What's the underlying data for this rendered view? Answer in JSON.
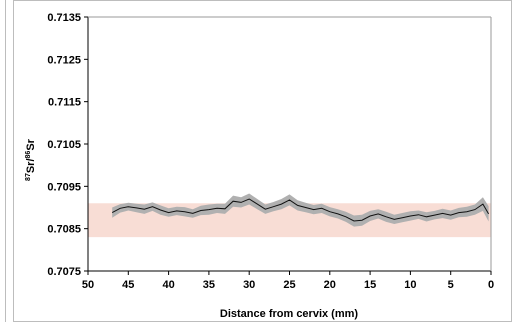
{
  "chart_data": {
    "type": "line",
    "title": "",
    "xlabel": "Distance from cervix (mm)",
    "ylabel_parts": {
      "sup1": "87",
      "mid": "Sr/",
      "sup2": "86",
      "tail": "Sr"
    },
    "xlim": [
      50,
      0
    ],
    "ylim": [
      0.7075,
      0.7135
    ],
    "x_ticks": [
      50,
      45,
      40,
      35,
      30,
      25,
      20,
      15,
      10,
      5,
      0
    ],
    "x_tick_labels": [
      "50",
      "45",
      "40",
      "35",
      "30",
      "25",
      "20",
      "15",
      "10",
      "5",
      "0"
    ],
    "y_ticks": [
      0.7075,
      0.7085,
      0.7095,
      0.7105,
      0.7115,
      0.7125,
      0.7135
    ],
    "y_tick_labels": [
      "0.7075",
      "0.7085",
      "0.7095",
      "0.7105",
      "0.7115",
      "0.7125",
      "0.7135"
    ],
    "grid": false,
    "band": {
      "y_min": 0.7083,
      "y_max": 0.7091,
      "color": "#f8ddd5"
    },
    "series": [
      {
        "color": "#111111",
        "error_color": "#b0b0b0",
        "x": [
          47,
          46,
          45,
          44,
          43,
          42,
          41,
          40,
          39,
          38,
          37,
          36,
          35,
          34,
          33,
          32,
          31,
          30,
          29,
          28,
          27,
          26,
          25,
          24,
          23,
          22,
          21,
          20,
          19,
          18,
          17,
          16,
          15,
          14,
          13,
          12,
          11,
          10,
          9,
          8,
          7,
          6,
          5,
          4,
          3,
          2,
          1,
          0.3
        ],
        "y": [
          0.70888,
          0.70898,
          0.70902,
          0.70899,
          0.70896,
          0.70902,
          0.70894,
          0.70888,
          0.70892,
          0.7089,
          0.70886,
          0.70893,
          0.70895,
          0.70898,
          0.70897,
          0.70915,
          0.70912,
          0.7092,
          0.70908,
          0.70896,
          0.70902,
          0.70908,
          0.70918,
          0.70905,
          0.709,
          0.70895,
          0.70898,
          0.7089,
          0.70885,
          0.70878,
          0.70868,
          0.7087,
          0.7088,
          0.70885,
          0.70878,
          0.70872,
          0.70876,
          0.7088,
          0.70883,
          0.70878,
          0.70882,
          0.70886,
          0.70882,
          0.70888,
          0.7089,
          0.70895,
          0.70908,
          0.70885
        ],
        "err": [
          0.00012,
          0.0001,
          9e-05,
          0.0001,
          0.00011,
          0.0001,
          0.00011,
          0.0001,
          0.0001,
          0.00011,
          0.0001,
          0.00011,
          0.00012,
          0.00011,
          0.00012,
          0.00013,
          0.00012,
          0.00013,
          0.00012,
          0.00011,
          0.00011,
          0.00012,
          0.00013,
          0.00012,
          0.00011,
          0.00011,
          0.00011,
          0.00011,
          0.00011,
          0.00012,
          0.00013,
          0.00013,
          0.00012,
          0.00011,
          0.00012,
          0.00011,
          0.00011,
          0.00011,
          0.0001,
          0.00011,
          0.0001,
          0.00011,
          0.00011,
          0.00011,
          0.00012,
          0.00012,
          0.00016,
          0.00018
        ]
      }
    ]
  }
}
